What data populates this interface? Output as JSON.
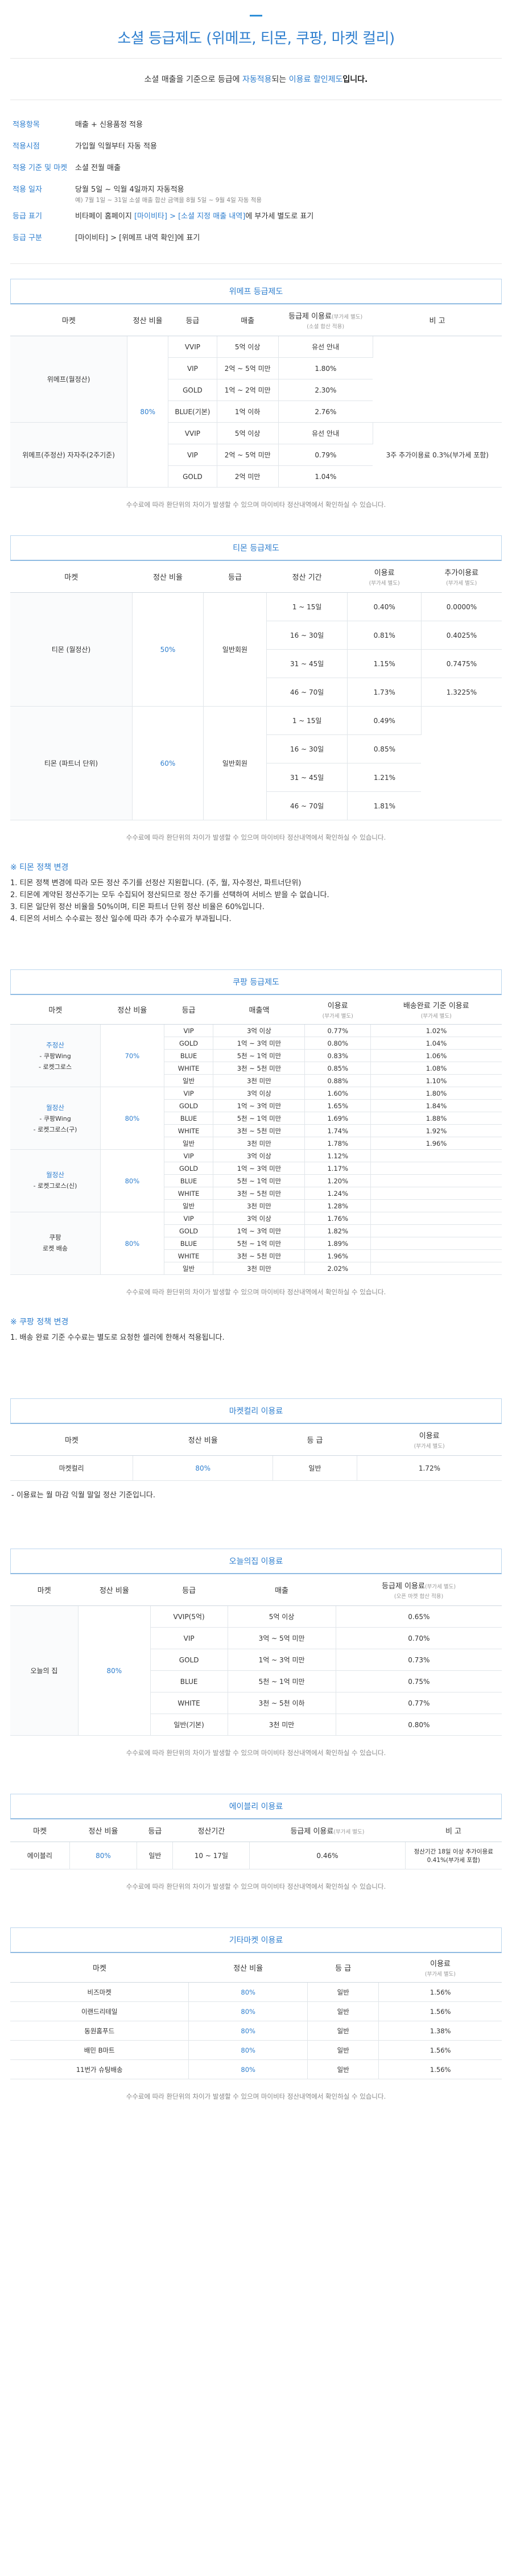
{
  "header": {
    "title": "소셜 등급제도 (위메프, 티몬, 쿠팡, 마켓 컬리)"
  },
  "intro": {
    "pre": "소셜 매출을 기준으로 등급에",
    "auto": "자동적용",
    "mid": "되는",
    "discount": "이용료 할인제도",
    "post": "입니다."
  },
  "info": [
    {
      "k": "적용항목",
      "v": "매출 + 신용품정 적용"
    },
    {
      "k": "적용시점",
      "v": "가입월 익월부터 자동 적용"
    },
    {
      "k": "적용 기준 및 마켓",
      "v": "소셜 전월 매출"
    },
    {
      "k": "적용 일자",
      "v": "당월 5일 ~ 익월 4일까지 자동적용",
      "sub": "예) 7월 1일 ~ 31일 소셜 매출 합산 금액을 8월 5일 ~ 9월 4일 자동 적용"
    },
    {
      "k": "등급 표기",
      "v_pre": "비타페이 홈페이지",
      "v_link": "[마이비타] > [소셜 지정 매출 내역]",
      "v_post": "에 부가세 별도로 표기"
    },
    {
      "k": "등급 구분",
      "v": "[마이비타] > [위메프 내역 확인]에 표기"
    }
  ],
  "wemakeprice": {
    "title": "위메프 등급제도",
    "headers": [
      "마켓",
      "정산 비율",
      "등급",
      "매출",
      "등급제 이용료",
      "비 고"
    ],
    "headers_sub": {
      "fee": "(부가세 별도)",
      "fee2": "(소셜 합산 적용)"
    },
    "market1": "위메프(월정산)",
    "market2": "위메프(주정산) 자자주(2주기준)",
    "ratio": "80%",
    "rows": [
      {
        "grade": "VVIP",
        "sales": "5억 이상",
        "fee": "유선 안내"
      },
      {
        "grade": "VIP",
        "sales": "2억 ~ 5억 미만",
        "fee": "1.80%"
      },
      {
        "grade": "GOLD",
        "sales": "1억 ~ 2억 미만",
        "fee": "2.30%"
      },
      {
        "grade": "BLUE(기본)",
        "sales": "1억 이하",
        "fee": "2.76%"
      },
      {
        "grade": "VVIP",
        "sales": "5억 이상",
        "fee": "유선 안내"
      },
      {
        "grade": "VIP",
        "sales": "2억 ~ 5억 미만",
        "fee": "0.79%"
      },
      {
        "grade": "GOLD",
        "sales": "2억 미만",
        "fee": "1.04%"
      }
    ],
    "remark": "3주 추가이용료 0.3%(부가세 포함)",
    "note": "수수료에 따라 환단위의 차이가 발생할 수 있으며 마이비타 정산내역에서 확인하실 수 있습니다."
  },
  "tmon": {
    "title": "티몬 등급제도",
    "headers": [
      "마켓",
      "정산 비율",
      "등급",
      "정산 기간",
      "이용료",
      "추가이용료"
    ],
    "headers_sub": {
      "fee": "(부가세 별도)",
      "extra": "(부가세 별도)"
    },
    "group1": {
      "market": "티몬 (월정산)",
      "ratio": "50%",
      "grade": "일반회원",
      "rows": [
        {
          "period": "1 ~ 15일",
          "fee": "0.40%",
          "extra": "0.0000%"
        },
        {
          "period": "16 ~ 30일",
          "fee": "0.81%",
          "extra": "0.4025%"
        },
        {
          "period": "31 ~ 45일",
          "fee": "1.15%",
          "extra": "0.7475%"
        },
        {
          "period": "46 ~ 70일",
          "fee": "1.73%",
          "extra": "1.3225%"
        }
      ]
    },
    "group2": {
      "market": "티몬 (파트너 단위)",
      "ratio": "60%",
      "grade": "일반회원",
      "rows": [
        {
          "period": "1 ~ 15일",
          "fee": "0.49%"
        },
        {
          "period": "16 ~ 30일",
          "fee": "0.85%"
        },
        {
          "period": "31 ~ 45일",
          "fee": "1.21%"
        },
        {
          "period": "46 ~ 70일",
          "fee": "1.81%"
        }
      ]
    },
    "note": "수수료에 따라 환단위의 차이가 발생할 수 있으며 마이비타 정산내역에서 확인하실 수 있습니다.",
    "policy_title": "※ 티몬 정책 변경",
    "policy": [
      "1. 티몬 정책 변경에 따라 모든 정산 주기를 선정산 지원합니다. (주, 월, 자수정산, 파트너단위)",
      "2. 티몬에 계약된 정산주기는 모두 수집되어 정산되므로 정산 주기를 선택하여 서비스 받을 수 없습니다.",
      "3. 티몬 일단위 정산 비율을 50%이며, 티몬 파트너 단위 정산 비율은 60%입니다.",
      "4. 티몬의 서비스 수수료는 정산 일수에 따라 추가 수수료가 부과됩니다."
    ]
  },
  "coupang": {
    "title": "쿠팡 등급제도",
    "headers": [
      "마켓",
      "정산 비율",
      "등급",
      "매출액",
      "이용료",
      "배송완료 기준 이용료"
    ],
    "headers_sub": {
      "fee": "(부가세 별도)",
      "deliv": "(부가세 별도)"
    },
    "groups": [
      {
        "market": "주정산",
        "sub1": "- 쿠팡Wing",
        "sub2": "- 로켓그로스",
        "ratio": "70%",
        "rows": [
          {
            "grade": "VIP",
            "sales": "3억 이상",
            "fee": "0.77%",
            "deliv": "1.02%"
          },
          {
            "grade": "GOLD",
            "sales": "1억 ~ 3억 미만",
            "fee": "0.80%",
            "deliv": "1.04%"
          },
          {
            "grade": "BLUE",
            "sales": "5천 ~ 1억 미만",
            "fee": "0.83%",
            "deliv": "1.06%"
          },
          {
            "grade": "WHITE",
            "sales": "3천 ~ 5천 미만",
            "fee": "0.85%",
            "deliv": "1.08%"
          },
          {
            "grade": "일반",
            "sales": "3천 미만",
            "fee": "0.88%",
            "deliv": "1.10%"
          }
        ]
      },
      {
        "market": "월정산",
        "sub1": "- 쿠팡Wing",
        "sub2": "- 로켓그로스(구)",
        "ratio": "80%",
        "rows": [
          {
            "grade": "VIP",
            "sales": "3억 이상",
            "fee": "1.60%",
            "deliv": "1.80%"
          },
          {
            "grade": "GOLD",
            "sales": "1억 ~ 3억 미만",
            "fee": "1.65%",
            "deliv": "1.84%"
          },
          {
            "grade": "BLUE",
            "sales": "5천 ~ 1억 미만",
            "fee": "1.69%",
            "deliv": "1.88%"
          },
          {
            "grade": "WHITE",
            "sales": "3천 ~ 5천 미만",
            "fee": "1.74%",
            "deliv": "1.92%"
          },
          {
            "grade": "일반",
            "sales": "3천 미만",
            "fee": "1.78%",
            "deliv": "1.96%"
          }
        ]
      },
      {
        "market": "월정산",
        "sub1": "- 로켓그로스(신)",
        "sub2": "",
        "ratio": "80%",
        "rows": [
          {
            "grade": "VIP",
            "sales": "3억 이상",
            "fee": "1.12%",
            "deliv": ""
          },
          {
            "grade": "GOLD",
            "sales": "1억 ~ 3억 미만",
            "fee": "1.17%",
            "deliv": ""
          },
          {
            "grade": "BLUE",
            "sales": "5천 ~ 1억 미만",
            "fee": "1.20%",
            "deliv": ""
          },
          {
            "grade": "WHITE",
            "sales": "3천 ~ 5천 미만",
            "fee": "1.24%",
            "deliv": ""
          },
          {
            "grade": "일반",
            "sales": "3천 미만",
            "fee": "1.28%",
            "deliv": ""
          }
        ]
      },
      {
        "market": "쿠팡",
        "sub1": "로켓 배송",
        "sub2": "",
        "ratio": "80%",
        "rows": [
          {
            "grade": "VIP",
            "sales": "3억 이상",
            "fee": "1.76%",
            "deliv": ""
          },
          {
            "grade": "GOLD",
            "sales": "1억 ~ 3억 미만",
            "fee": "1.82%",
            "deliv": ""
          },
          {
            "grade": "BLUE",
            "sales": "5천 ~ 1억 미만",
            "fee": "1.89%",
            "deliv": ""
          },
          {
            "grade": "WHITE",
            "sales": "3천 ~ 5천 미만",
            "fee": "1.96%",
            "deliv": ""
          },
          {
            "grade": "일반",
            "sales": "3천 미만",
            "fee": "2.02%",
            "deliv": ""
          }
        ]
      }
    ],
    "note": "수수료에 따라 환단위의 차이가 발생할 수 있으며 마이비타 정산내역에서 확인하실 수 있습니다.",
    "policy_title": "※ 쿠팡 정책 변경",
    "policy": [
      "1. 배송 완료 기준 수수료는 별도로 요청한 셀러에 한해서 적용됩니다."
    ]
  },
  "kurly": {
    "title": "마켓컬리 이용료",
    "headers": [
      "마켓",
      "정산 비율",
      "등 급",
      "이용료"
    ],
    "headers_sub": {
      "fee": "(부가세 별도)"
    },
    "row": {
      "market": "마켓컬리",
      "ratio": "80%",
      "grade": "일반",
      "fee": "1.72%"
    },
    "note": "- 이용료는 월 마감 익월 말일 정산 기준입니다."
  },
  "ohouse": {
    "title": "오늘의집 이용료",
    "headers": [
      "마켓",
      "정산 비율",
      "등급",
      "매출",
      "등급제 이용료"
    ],
    "headers_sub": {
      "fee": "(부가세 별도)",
      "fee2": "(오픈 마켓 합산 적용)"
    },
    "market": "오늘의 집",
    "ratio": "80%",
    "rows": [
      {
        "grade": "VVIP(5억)",
        "sales": "5억 이상",
        "fee": "0.65%"
      },
      {
        "grade": "VIP",
        "sales": "3억 ~ 5억 미만",
        "fee": "0.70%"
      },
      {
        "grade": "GOLD",
        "sales": "1억 ~ 3억 미만",
        "fee": "0.73%"
      },
      {
        "grade": "BLUE",
        "sales": "5천 ~ 1억 미만",
        "fee": "0.75%"
      },
      {
        "grade": "WHITE",
        "sales": "3천 ~ 5천 이하",
        "fee": "0.77%"
      },
      {
        "grade": "일반(기본)",
        "sales": "3천 미만",
        "fee": "0.80%"
      }
    ],
    "note": "수수료에 따라 환단위의 차이가 발생할 수 있으며 마이비타 정산내역에서 확인하실 수 있습니다."
  },
  "ably": {
    "title": "에이블리 이용료",
    "headers": [
      "마켓",
      "정산 비율",
      "등급",
      "정산기간",
      "등급제 이용료",
      "비 고"
    ],
    "headers_sub": {
      "fee": "(부가세 별도)"
    },
    "row": {
      "market": "에이블리",
      "ratio": "80%",
      "grade": "일반",
      "period": "10 ~ 17일",
      "fee": "0.46%",
      "remark": "정산기간 18일 이상 추가이용료 0.41%(부가세 포함)"
    },
    "note": "수수료에 따라 환단위의 차이가 발생할 수 있으며 마이비타 정산내역에서 확인하실 수 있습니다."
  },
  "others": {
    "title": "기타마켓 이용료",
    "headers": [
      "마켓",
      "정산 비율",
      "등 급",
      "이용료"
    ],
    "headers_sub": {
      "fee": "(부가세 별도)"
    },
    "rows": [
      {
        "market": "비즈마켓",
        "ratio": "80%",
        "grade": "일반",
        "fee": "1.56%"
      },
      {
        "market": "이랜드리테일",
        "ratio": "80%",
        "grade": "일반",
        "fee": "1.56%"
      },
      {
        "market": "동원홈푸드",
        "ratio": "80%",
        "grade": "일반",
        "fee": "1.38%"
      },
      {
        "market": "배민 B마트",
        "ratio": "80%",
        "grade": "일반",
        "fee": "1.56%"
      },
      {
        "market": "11번가 슈팅배송",
        "ratio": "80%",
        "grade": "일반",
        "fee": "1.56%"
      }
    ],
    "note": "수수료에 따라 환단위의 차이가 발생할 수 있으며 마이비타 정산내역에서 확인하실 수 있습니다."
  },
  "colors": {
    "accent": "#2f7fcf",
    "border": "#e1e6ea",
    "head_border": "#8fbbe2"
  }
}
